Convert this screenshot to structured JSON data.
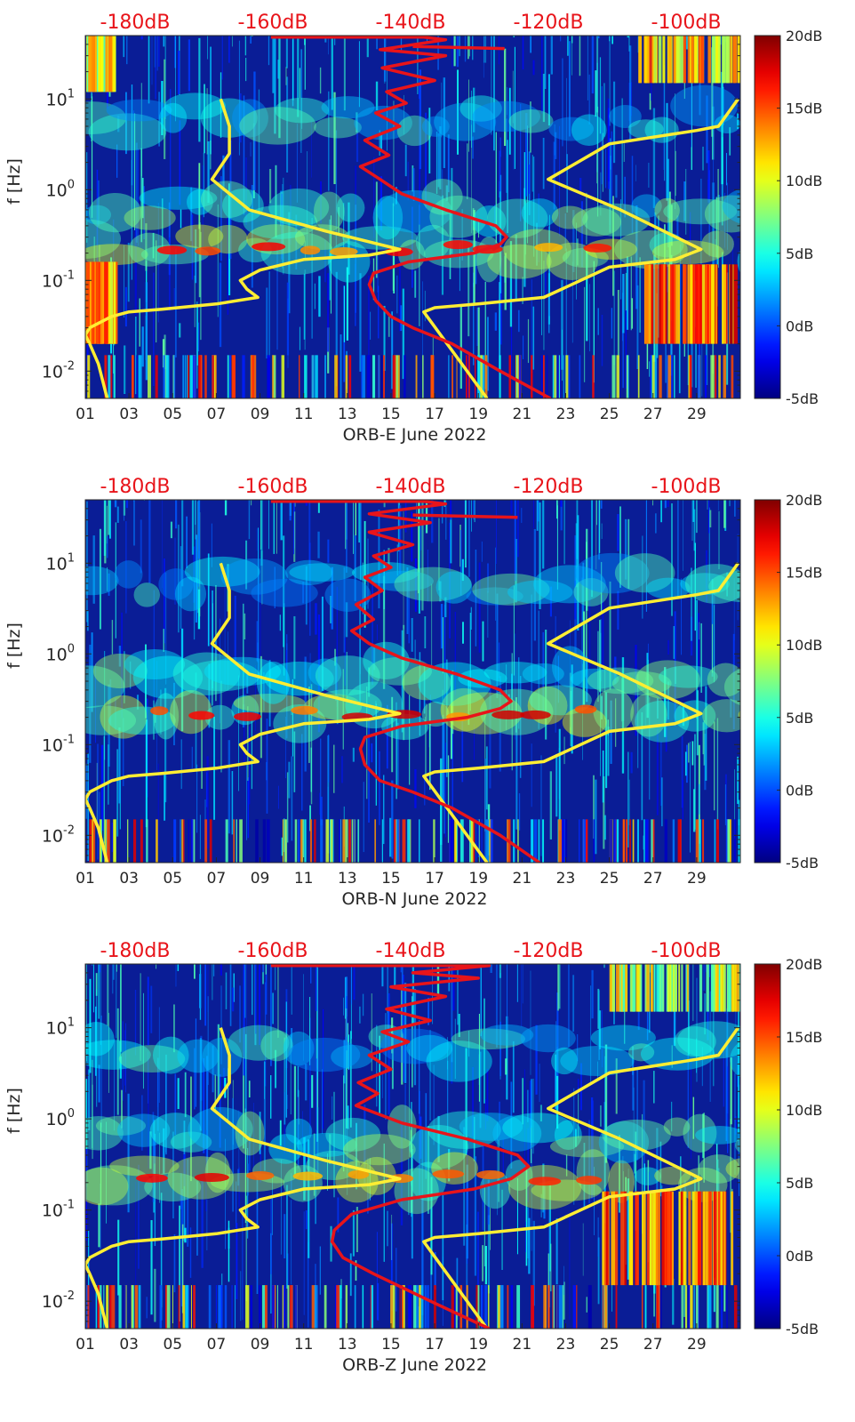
{
  "figure": {
    "colors": {
      "yellow_curve": "#ffee33",
      "red_curve": "#e8141a",
      "top_axis_text": "#e8141a",
      "text": "#262626",
      "spectrogram_base": "#0a1d96"
    }
  },
  "chart_data": [
    {
      "type": "heatmap",
      "title": "ORB-E June 2022",
      "xlabel": "ORB-E June 2022",
      "ylabel": "f [Hz]",
      "y_scale": "log",
      "ylim": [
        0.005,
        50
      ],
      "xlim": [
        1,
        31
      ],
      "x_ticks": [
        "01",
        "03",
        "05",
        "07",
        "09",
        "11",
        "13",
        "15",
        "17",
        "19",
        "21",
        "23",
        "25",
        "27",
        "29"
      ],
      "y_ticks": [
        "10^-2",
        "10^-1",
        "10^0",
        "10^1"
      ],
      "top_ticks": [
        "-180dB",
        "-160dB",
        "-140dB",
        "-120dB",
        "-100dB"
      ],
      "colorbar": {
        "ticks": [
          "20dB",
          "15dB",
          "10dB",
          "5dB",
          "0dB",
          "-5dB"
        ],
        "range": [
          -5,
          20
        ],
        "colormap": "jet"
      },
      "hot_bands": [
        {
          "x0": 26.5,
          "x1": 31.0,
          "f_lo": 0.02,
          "f_hi": 0.15,
          "level_db": 19
        },
        {
          "x0": 1.0,
          "x1": 2.4,
          "f_lo": 0.02,
          "f_hi": 0.16,
          "level_db": 17
        },
        {
          "x0": 26.3,
          "x1": 31.0,
          "f_lo": 15,
          "f_hi": 50,
          "level_db": 16
        },
        {
          "x0": 1.0,
          "x1": 2.3,
          "f_lo": 12,
          "f_hi": 50,
          "level_db": 14
        }
      ],
      "series": [
        {
          "color": "#ffee33",
          "points": [
            [
              7.2,
              10
            ],
            [
              7.6,
              5
            ],
            [
              7.6,
              2.5
            ],
            [
              6.8,
              1.3
            ],
            [
              8.5,
              0.6
            ],
            [
              12.0,
              0.35
            ],
            [
              15.4,
              0.22
            ],
            [
              14.0,
              0.19
            ],
            [
              11.0,
              0.17
            ],
            [
              9.0,
              0.13
            ],
            [
              8.1,
              0.1
            ],
            [
              8.4,
              0.08
            ],
            [
              8.9,
              0.065
            ],
            [
              7.0,
              0.055
            ],
            [
              4.5,
              0.048
            ],
            [
              3.0,
              0.045
            ],
            [
              2.2,
              0.04
            ],
            [
              1.2,
              0.03
            ],
            [
              1.0,
              0.025
            ],
            [
              1.2,
              0.02
            ],
            [
              1.6,
              0.012
            ],
            [
              2.0,
              0.005
            ]
          ]
        },
        {
          "color": "#ffee33",
          "points": [
            [
              30.9,
              10
            ],
            [
              30.0,
              5
            ],
            [
              29.0,
              4.5
            ],
            [
              25.0,
              3.2
            ],
            [
              22.2,
              1.3
            ],
            [
              25.5,
              0.6
            ],
            [
              29.2,
              0.22
            ],
            [
              28.0,
              0.17
            ],
            [
              25.0,
              0.14
            ],
            [
              22.0,
              0.065
            ],
            [
              19.0,
              0.055
            ],
            [
              17.0,
              0.05
            ],
            [
              16.5,
              0.045
            ],
            [
              19.4,
              0.005
            ]
          ]
        },
        {
          "color": "#e8141a",
          "points": [
            [
              9.5,
              48
            ],
            [
              16.5,
              48
            ],
            [
              17.5,
              45
            ],
            [
              14.5,
              35
            ],
            [
              17.5,
              30
            ],
            [
              14.6,
              22
            ],
            [
              17.0,
              16
            ],
            [
              14.8,
              12
            ],
            [
              15.7,
              9
            ],
            [
              14.3,
              7
            ],
            [
              15.4,
              5
            ],
            [
              13.8,
              3.5
            ],
            [
              14.9,
              2.4
            ],
            [
              13.6,
              1.8
            ],
            [
              14.5,
              1.3
            ],
            [
              15.5,
              0.9
            ],
            [
              17.5,
              0.6
            ],
            [
              19.8,
              0.4
            ],
            [
              20.3,
              0.3
            ],
            [
              20.0,
              0.25
            ],
            [
              18.8,
              0.2
            ],
            [
              15.8,
              0.16
            ],
            [
              14.2,
              0.12
            ],
            [
              14.0,
              0.09
            ],
            [
              14.3,
              0.06
            ],
            [
              15.0,
              0.04
            ],
            [
              16.0,
              0.03
            ],
            [
              17.8,
              0.02
            ],
            [
              20.0,
              0.01
            ],
            [
              22.3,
              0.005
            ]
          ]
        },
        {
          "color": "#e8141a",
          "points": [
            [
              16.0,
              38
            ],
            [
              20.2,
              36
            ]
          ]
        }
      ]
    },
    {
      "type": "heatmap",
      "title": "ORB-N June 2022",
      "xlabel": "ORB-N June 2022",
      "ylabel": "f [Hz]",
      "y_scale": "log",
      "ylim": [
        0.005,
        50
      ],
      "xlim": [
        1,
        31
      ],
      "x_ticks": [
        "01",
        "03",
        "05",
        "07",
        "09",
        "11",
        "13",
        "15",
        "17",
        "19",
        "21",
        "23",
        "25",
        "27",
        "29"
      ],
      "y_ticks": [
        "10^-2",
        "10^-1",
        "10^0",
        "10^1"
      ],
      "top_ticks": [
        "-180dB",
        "-160dB",
        "-140dB",
        "-120dB",
        "-100dB"
      ],
      "colorbar": {
        "ticks": [
          "20dB",
          "15dB",
          "10dB",
          "5dB",
          "0dB",
          "-5dB"
        ],
        "range": [
          -5,
          20
        ],
        "colormap": "jet"
      },
      "hot_bands": [],
      "series": [
        {
          "color": "#ffee33",
          "points": [
            [
              7.2,
              10
            ],
            [
              7.6,
              5
            ],
            [
              7.6,
              2.5
            ],
            [
              6.8,
              1.3
            ],
            [
              8.5,
              0.6
            ],
            [
              12.0,
              0.35
            ],
            [
              15.4,
              0.22
            ],
            [
              14.0,
              0.19
            ],
            [
              11.0,
              0.17
            ],
            [
              9.0,
              0.13
            ],
            [
              8.1,
              0.1
            ],
            [
              8.4,
              0.08
            ],
            [
              8.9,
              0.065
            ],
            [
              7.0,
              0.055
            ],
            [
              4.5,
              0.048
            ],
            [
              3.0,
              0.045
            ],
            [
              2.2,
              0.04
            ],
            [
              1.2,
              0.03
            ],
            [
              1.0,
              0.025
            ],
            [
              1.2,
              0.02
            ],
            [
              1.6,
              0.012
            ],
            [
              2.0,
              0.005
            ]
          ]
        },
        {
          "color": "#ffee33",
          "points": [
            [
              30.9,
              10
            ],
            [
              30.0,
              5
            ],
            [
              29.0,
              4.5
            ],
            [
              25.0,
              3.2
            ],
            [
              22.2,
              1.3
            ],
            [
              25.5,
              0.6
            ],
            [
              29.2,
              0.22
            ],
            [
              28.0,
              0.17
            ],
            [
              25.0,
              0.14
            ],
            [
              22.0,
              0.065
            ],
            [
              19.0,
              0.055
            ],
            [
              17.0,
              0.05
            ],
            [
              16.5,
              0.045
            ],
            [
              19.4,
              0.005
            ]
          ]
        },
        {
          "color": "#e8141a",
          "points": [
            [
              9.5,
              48
            ],
            [
              16.5,
              48
            ],
            [
              17.5,
              45
            ],
            [
              14.0,
              35
            ],
            [
              16.8,
              28
            ],
            [
              14.0,
              22
            ],
            [
              16.0,
              16
            ],
            [
              14.2,
              12
            ],
            [
              15.0,
              9
            ],
            [
              13.8,
              7
            ],
            [
              14.6,
              5
            ],
            [
              13.4,
              3.5
            ],
            [
              14.2,
              2.4
            ],
            [
              13.2,
              1.8
            ],
            [
              14.0,
              1.3
            ],
            [
              15.5,
              0.9
            ],
            [
              18.0,
              0.6
            ],
            [
              20.0,
              0.4
            ],
            [
              20.5,
              0.3
            ],
            [
              20.0,
              0.25
            ],
            [
              18.5,
              0.2
            ],
            [
              15.5,
              0.16
            ],
            [
              13.8,
              0.12
            ],
            [
              13.6,
              0.09
            ],
            [
              13.8,
              0.06
            ],
            [
              14.5,
              0.04
            ],
            [
              16.0,
              0.03
            ],
            [
              17.8,
              0.02
            ],
            [
              20.0,
              0.01
            ],
            [
              21.8,
              0.005
            ]
          ]
        },
        {
          "color": "#e8141a",
          "points": [
            [
              16.0,
              34
            ],
            [
              20.8,
              32
            ]
          ]
        }
      ]
    },
    {
      "type": "heatmap",
      "title": "ORB-Z June 2022",
      "xlabel": "ORB-Z June 2022",
      "ylabel": "f [Hz]",
      "y_scale": "log",
      "ylim": [
        0.005,
        50
      ],
      "xlim": [
        1,
        31
      ],
      "x_ticks": [
        "01",
        "03",
        "05",
        "07",
        "09",
        "11",
        "13",
        "15",
        "17",
        "19",
        "21",
        "23",
        "25",
        "27",
        "29"
      ],
      "y_ticks": [
        "10^-2",
        "10^-1",
        "10^0",
        "10^1"
      ],
      "top_ticks": [
        "-180dB",
        "-160dB",
        "-140dB",
        "-120dB",
        "-100dB"
      ],
      "colorbar": {
        "ticks": [
          "20dB",
          "15dB",
          "10dB",
          "5dB",
          "0dB",
          "-5dB"
        ],
        "range": [
          -5,
          20
        ],
        "colormap": "jet"
      },
      "hot_bands": [
        {
          "x0": 24.6,
          "x1": 31.0,
          "f_lo": 0.015,
          "f_hi": 0.16,
          "level_db": 18
        },
        {
          "x0": 25.0,
          "x1": 31.0,
          "f_lo": 15,
          "f_hi": 50,
          "level_db": 13
        }
      ],
      "series": [
        {
          "color": "#ffee33",
          "points": [
            [
              7.2,
              10
            ],
            [
              7.6,
              5
            ],
            [
              7.6,
              2.5
            ],
            [
              6.8,
              1.3
            ],
            [
              8.5,
              0.6
            ],
            [
              12.0,
              0.35
            ],
            [
              15.4,
              0.22
            ],
            [
              14.0,
              0.19
            ],
            [
              11.0,
              0.17
            ],
            [
              9.0,
              0.13
            ],
            [
              8.1,
              0.1
            ],
            [
              8.4,
              0.08
            ],
            [
              8.9,
              0.065
            ],
            [
              7.0,
              0.055
            ],
            [
              4.5,
              0.048
            ],
            [
              3.0,
              0.045
            ],
            [
              2.2,
              0.04
            ],
            [
              1.2,
              0.03
            ],
            [
              1.0,
              0.025
            ],
            [
              1.2,
              0.02
            ],
            [
              1.6,
              0.012
            ],
            [
              2.0,
              0.005
            ]
          ]
        },
        {
          "color": "#ffee33",
          "points": [
            [
              30.9,
              10
            ],
            [
              30.0,
              5
            ],
            [
              29.0,
              4.5
            ],
            [
              25.0,
              3.2
            ],
            [
              22.2,
              1.3
            ],
            [
              25.5,
              0.6
            ],
            [
              29.2,
              0.22
            ],
            [
              28.0,
              0.17
            ],
            [
              25.0,
              0.14
            ],
            [
              22.0,
              0.065
            ],
            [
              19.0,
              0.055
            ],
            [
              17.0,
              0.05
            ],
            [
              16.5,
              0.045
            ],
            [
              19.4,
              0.005
            ]
          ]
        },
        {
          "color": "#e8141a",
          "points": [
            [
              9.5,
              48
            ],
            [
              19.5,
              48
            ],
            [
              16.0,
              40
            ],
            [
              19.0,
              35
            ],
            [
              15.0,
              28
            ],
            [
              17.5,
              22
            ],
            [
              14.8,
              16
            ],
            [
              16.8,
              12
            ],
            [
              14.6,
              9
            ],
            [
              15.8,
              7
            ],
            [
              14.0,
              5
            ],
            [
              15.0,
              3.5
            ],
            [
              13.5,
              2.5
            ],
            [
              14.4,
              1.9
            ],
            [
              13.4,
              1.4
            ],
            [
              15.5,
              0.9
            ],
            [
              18.5,
              0.6
            ],
            [
              20.8,
              0.4
            ],
            [
              21.3,
              0.3
            ],
            [
              20.5,
              0.22
            ],
            [
              18.8,
              0.17
            ],
            [
              15.5,
              0.13
            ],
            [
              13.2,
              0.09
            ],
            [
              12.4,
              0.06
            ],
            [
              12.3,
              0.045
            ],
            [
              12.8,
              0.03
            ],
            [
              14.2,
              0.02
            ],
            [
              16.8,
              0.01
            ],
            [
              19.5,
              0.005
            ]
          ]
        }
      ]
    }
  ]
}
